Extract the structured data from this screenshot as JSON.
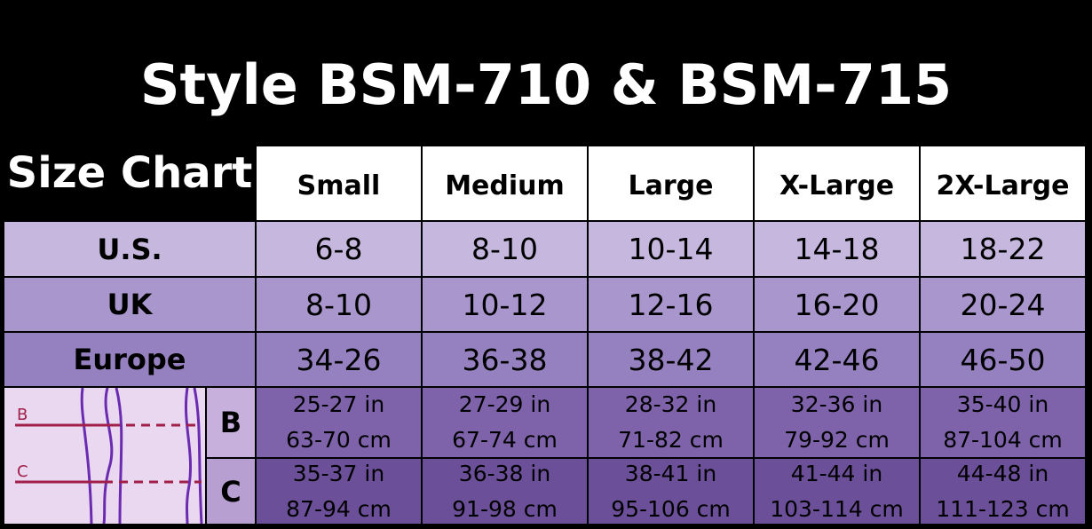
{
  "header": {
    "title": "Style BSM-710 & BSM-715",
    "subtitle": "Size Chart"
  },
  "table": {
    "columns": [
      "Small",
      "Medium",
      "Large",
      "X-Large",
      "2X-Large"
    ],
    "rows": [
      {
        "label": "U.S.",
        "cells": [
          "6-8",
          "8-10",
          "10-14",
          "14-18",
          "18-22"
        ]
      },
      {
        "label": "UK",
        "cells": [
          "8-10",
          "10-12",
          "12-16",
          "16-20",
          "20-24"
        ]
      },
      {
        "label": "Europe",
        "cells": [
          "34-26",
          "36-38",
          "38-42",
          "42-46",
          "46-50"
        ]
      }
    ],
    "measurements": [
      {
        "label": "B",
        "cells": [
          [
            "25-27 in",
            "63-70 cm"
          ],
          [
            "27-29 in",
            "67-74 cm"
          ],
          [
            "28-32 in",
            "71-82 cm"
          ],
          [
            "32-36 in",
            "79-92 cm"
          ],
          [
            "35-40 in",
            "87-104 cm"
          ]
        ]
      },
      {
        "label": "C",
        "cells": [
          [
            "35-37 in",
            "87-94 cm"
          ],
          [
            "36-38 in",
            "91-98 cm"
          ],
          [
            "38-41 in",
            "95-106 cm"
          ],
          [
            "41-44 in",
            "103-114 cm"
          ],
          [
            "44-48 in",
            "111-123 cm"
          ]
        ]
      }
    ]
  },
  "diagram": {
    "labels": [
      "B",
      "C"
    ]
  }
}
